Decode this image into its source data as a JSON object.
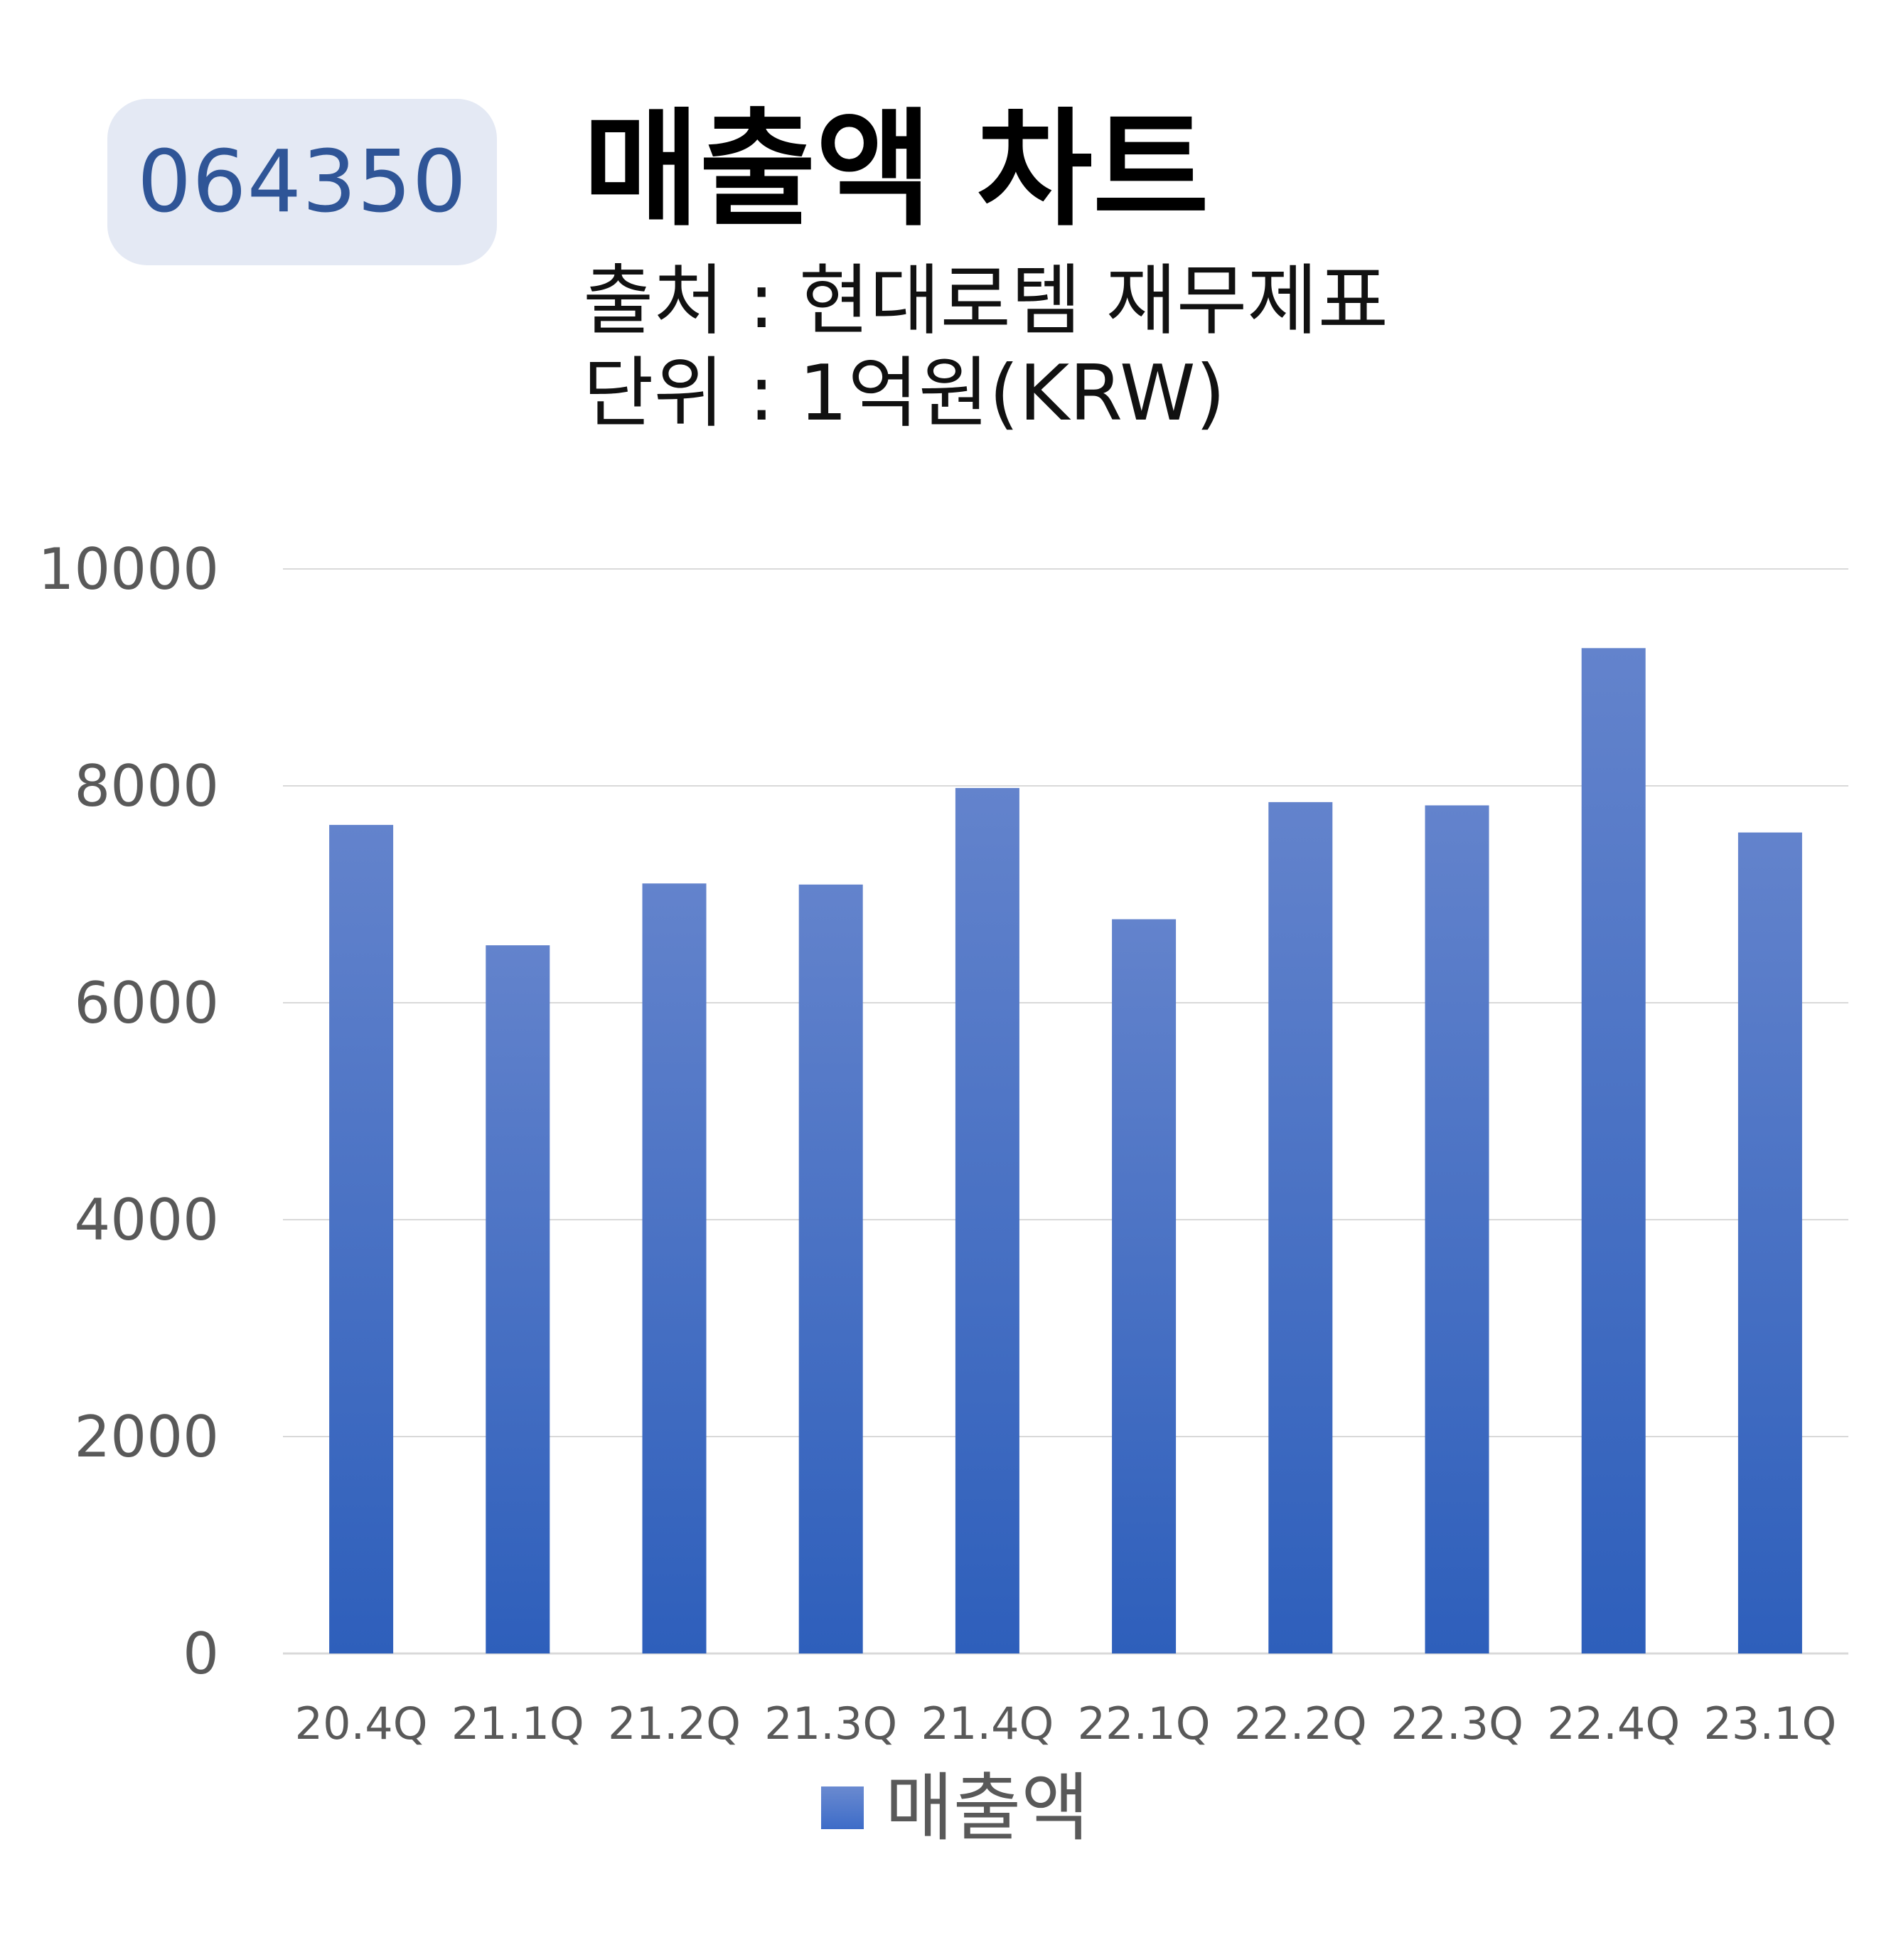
{
  "header": {
    "code": "064350",
    "title": "매출액 차트",
    "source": "출처 : 현대로템 재무제표",
    "unit": "단위 : 1억원(KRW)"
  },
  "colors": {
    "badge_bg": "#e4e9f4",
    "badge_text": "#2f5597",
    "bar_top": "#6383cc",
    "bar_bottom": "#2e5fbb",
    "gridline": "#d9d9d9",
    "axis_text": "#595959"
  },
  "chart_data": {
    "type": "bar",
    "categories": [
      "20.4Q",
      "21.1Q",
      "21.2Q",
      "21.3Q",
      "21.4Q",
      "22.1Q",
      "22.2Q",
      "22.3Q",
      "22.4Q",
      "23.1Q"
    ],
    "series": [
      {
        "name": "매출액",
        "values": [
          7640,
          6530,
          7100,
          7090,
          7980,
          6770,
          7850,
          7820,
          9270,
          7570
        ]
      }
    ],
    "ylim": [
      0,
      10000
    ],
    "yticks": [
      0,
      2000,
      4000,
      6000,
      8000,
      10000
    ],
    "grid": true,
    "legend": "bottom"
  }
}
